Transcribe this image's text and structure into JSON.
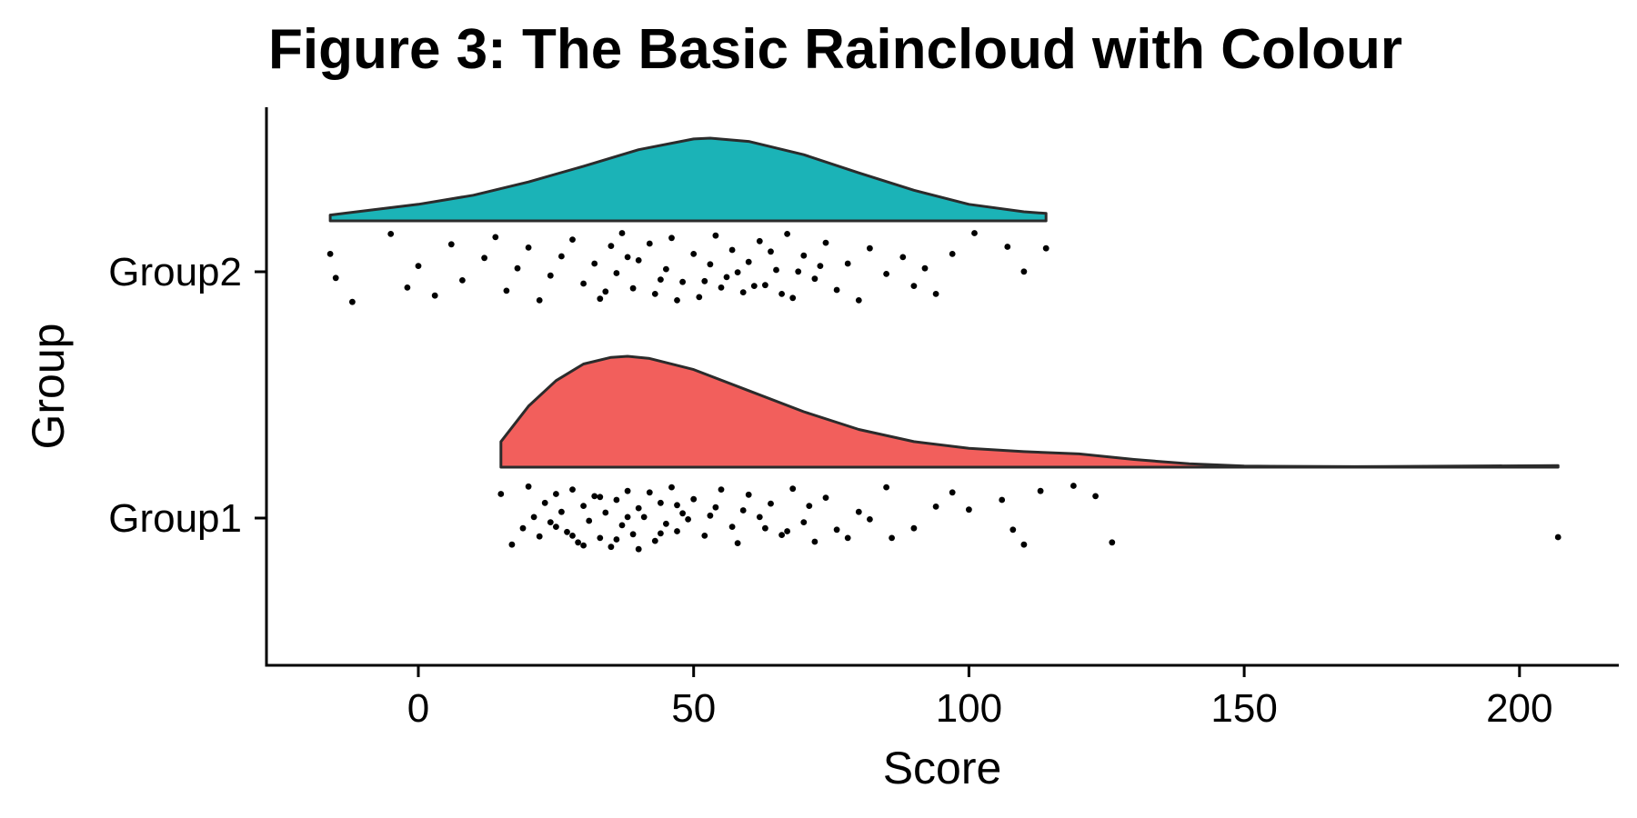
{
  "chart_data": {
    "type": "raincloud",
    "title": "Figure 3: The Basic Raincloud with Colour",
    "xlabel": "Score",
    "ylabel": "Group",
    "xlim": [
      -27,
      218
    ],
    "xticks": [
      0,
      50,
      100,
      150,
      200
    ],
    "xtick_labels": [
      "0",
      "50",
      "100",
      "150",
      "200"
    ],
    "grid": false,
    "legend": "none",
    "groups": [
      {
        "name": "Group1",
        "color": "#F25F5C",
        "density_x": [
          15,
          20,
          25,
          30,
          35,
          38,
          42,
          50,
          60,
          70,
          80,
          90,
          100,
          110,
          120,
          130,
          140,
          150,
          170,
          190,
          207
        ],
        "density_y": [
          0.23,
          0.55,
          0.78,
          0.93,
          0.99,
          1.0,
          0.98,
          0.88,
          0.69,
          0.5,
          0.34,
          0.23,
          0.17,
          0.14,
          0.12,
          0.07,
          0.03,
          0.01,
          0.005,
          0.01,
          0.015
        ],
        "points": [
          [
            15,
            0.86
          ],
          [
            17,
            0.18
          ],
          [
            19,
            0.4
          ],
          [
            20,
            0.96
          ],
          [
            21,
            0.55
          ],
          [
            22,
            0.29
          ],
          [
            23,
            0.74
          ],
          [
            24,
            0.48
          ],
          [
            25,
            0.86
          ],
          [
            26,
            0.62
          ],
          [
            27,
            0.35
          ],
          [
            28,
            0.92
          ],
          [
            29,
            0.21
          ],
          [
            30,
            0.7
          ],
          [
            31,
            0.5
          ],
          [
            32,
            0.83
          ],
          [
            33,
            0.27
          ],
          [
            34,
            0.61
          ],
          [
            35,
            0.15
          ],
          [
            36,
            0.78
          ],
          [
            37,
            0.44
          ],
          [
            38,
            0.9
          ],
          [
            39,
            0.32
          ],
          [
            40,
            0.67
          ],
          [
            41,
            0.55
          ],
          [
            42,
            0.88
          ],
          [
            43,
            0.23
          ],
          [
            44,
            0.74
          ],
          [
            45,
            0.46
          ],
          [
            46,
            0.95
          ],
          [
            47,
            0.36
          ],
          [
            48,
            0.6
          ],
          [
            50,
            0.79
          ],
          [
            52,
            0.3
          ],
          [
            54,
            0.68
          ],
          [
            55,
            0.92
          ],
          [
            57,
            0.42
          ],
          [
            58,
            0.2
          ],
          [
            60,
            0.85
          ],
          [
            62,
            0.55
          ],
          [
            64,
            0.73
          ],
          [
            66,
            0.31
          ],
          [
            68,
            0.93
          ],
          [
            70,
            0.48
          ],
          [
            72,
            0.22
          ],
          [
            74,
            0.81
          ],
          [
            76,
            0.38
          ],
          [
            80,
            0.62
          ],
          [
            82,
            0.52
          ],
          [
            85,
            0.95
          ],
          [
            86,
            0.27
          ],
          [
            90,
            0.4
          ],
          [
            94,
            0.69
          ],
          [
            97,
            0.88
          ],
          [
            100,
            0.65
          ],
          [
            106,
            0.78
          ],
          [
            108,
            0.38
          ],
          [
            110,
            0.18
          ],
          [
            113,
            0.9
          ],
          [
            119,
            0.97
          ],
          [
            123,
            0.83
          ],
          [
            126,
            0.21
          ],
          [
            207,
            0.28
          ],
          [
            25,
            0.42
          ],
          [
            28,
            0.3
          ],
          [
            30,
            0.17
          ],
          [
            33,
            0.82
          ],
          [
            36,
            0.25
          ],
          [
            38,
            0.55
          ],
          [
            40,
            0.12
          ],
          [
            44,
            0.33
          ],
          [
            47,
            0.71
          ],
          [
            49,
            0.52
          ],
          [
            53,
            0.57
          ],
          [
            59,
            0.64
          ],
          [
            63,
            0.4
          ],
          [
            67,
            0.36
          ],
          [
            71,
            0.7
          ],
          [
            78,
            0.27
          ]
        ]
      },
      {
        "name": "Group2",
        "color": "#1BB3B7",
        "density_x": [
          -16,
          -10,
          0,
          10,
          20,
          30,
          40,
          50,
          53,
          60,
          70,
          80,
          90,
          100,
          110,
          114
        ],
        "density_y": [
          0.07,
          0.12,
          0.2,
          0.31,
          0.47,
          0.66,
          0.86,
          0.99,
          1.0,
          0.96,
          0.8,
          0.58,
          0.37,
          0.2,
          0.11,
          0.09
        ],
        "points": [
          [
            -16,
            0.7
          ],
          [
            -15,
            0.4
          ],
          [
            -12,
            0.1
          ],
          [
            -5,
            0.95
          ],
          [
            -2,
            0.28
          ],
          [
            0,
            0.55
          ],
          [
            3,
            0.18
          ],
          [
            6,
            0.82
          ],
          [
            8,
            0.37
          ],
          [
            12,
            0.65
          ],
          [
            14,
            0.91
          ],
          [
            16,
            0.24
          ],
          [
            18,
            0.52
          ],
          [
            20,
            0.78
          ],
          [
            22,
            0.12
          ],
          [
            24,
            0.43
          ],
          [
            26,
            0.67
          ],
          [
            28,
            0.88
          ],
          [
            30,
            0.33
          ],
          [
            32,
            0.58
          ],
          [
            33,
            0.14
          ],
          [
            35,
            0.8
          ],
          [
            36,
            0.46
          ],
          [
            37,
            0.96
          ],
          [
            39,
            0.27
          ],
          [
            40,
            0.62
          ],
          [
            42,
            0.83
          ],
          [
            43,
            0.2
          ],
          [
            45,
            0.51
          ],
          [
            46,
            0.9
          ],
          [
            48,
            0.35
          ],
          [
            50,
            0.7
          ],
          [
            51,
            0.16
          ],
          [
            53,
            0.57
          ],
          [
            54,
            0.93
          ],
          [
            56,
            0.41
          ],
          [
            57,
            0.75
          ],
          [
            59,
            0.22
          ],
          [
            60,
            0.6
          ],
          [
            62,
            0.86
          ],
          [
            63,
            0.31
          ],
          [
            65,
            0.5
          ],
          [
            67,
            0.95
          ],
          [
            68,
            0.15
          ],
          [
            70,
            0.68
          ],
          [
            72,
            0.39
          ],
          [
            74,
            0.84
          ],
          [
            76,
            0.25
          ],
          [
            78,
            0.58
          ],
          [
            80,
            0.12
          ],
          [
            82,
            0.77
          ],
          [
            85,
            0.45
          ],
          [
            88,
            0.66
          ],
          [
            90,
            0.3
          ],
          [
            92,
            0.52
          ],
          [
            94,
            0.2
          ],
          [
            97,
            0.7
          ],
          [
            101,
            0.96
          ],
          [
            107,
            0.79
          ],
          [
            110,
            0.48
          ],
          [
            114,
            0.77
          ],
          [
            34,
            0.23
          ],
          [
            38,
            0.66
          ],
          [
            44,
            0.38
          ],
          [
            47,
            0.12
          ],
          [
            52,
            0.36
          ],
          [
            55,
            0.28
          ],
          [
            58,
            0.47
          ],
          [
            61,
            0.3
          ],
          [
            64,
            0.73
          ],
          [
            66,
            0.2
          ],
          [
            69,
            0.48
          ],
          [
            73,
            0.55
          ]
        ]
      }
    ]
  }
}
